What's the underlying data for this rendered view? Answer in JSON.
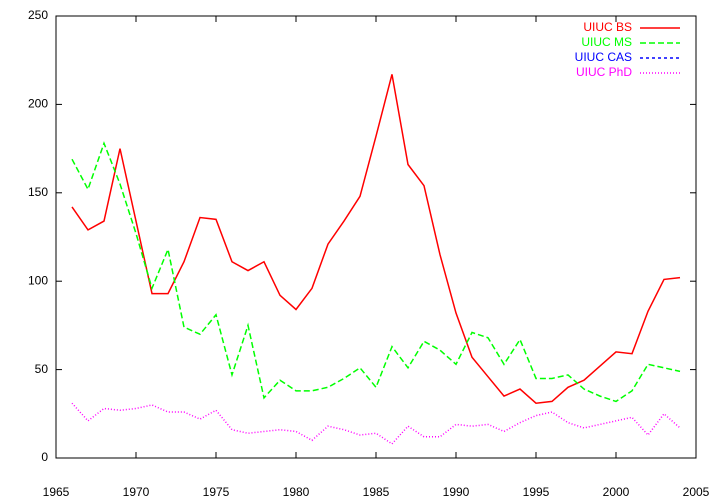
{
  "chart_data": {
    "type": "line",
    "x": [
      1966,
      1967,
      1968,
      1969,
      1970,
      1971,
      1972,
      1973,
      1974,
      1975,
      1976,
      1977,
      1978,
      1979,
      1980,
      1981,
      1982,
      1983,
      1984,
      1985,
      1986,
      1987,
      1988,
      1989,
      1990,
      1991,
      1992,
      1993,
      1994,
      1995,
      1996,
      1997,
      1998,
      1999,
      2000,
      2001,
      2002,
      2003,
      2004
    ],
    "series": [
      {
        "name": "UIUC BS",
        "color": "#ff0000",
        "dash": "solid",
        "values": [
          142,
          129,
          134,
          175,
          134,
          93,
          93,
          111,
          136,
          135,
          111,
          106,
          111,
          92,
          84,
          96,
          121,
          134,
          148,
          182,
          217,
          166,
          154,
          115,
          82,
          57,
          46,
          35,
          39,
          31,
          32,
          40,
          44,
          52,
          60,
          59,
          83,
          101,
          102
        ]
      },
      {
        "name": "UIUC MS",
        "color": "#00ff00",
        "dash": "dashed",
        "values": [
          169,
          152,
          178,
          155,
          127,
          96,
          118,
          74,
          70,
          81,
          47,
          75,
          34,
          44,
          38,
          38,
          40,
          45,
          51,
          40,
          63,
          51,
          66,
          61,
          53,
          71,
          68,
          53,
          67,
          45,
          45,
          47,
          39,
          35,
          32,
          38,
          53,
          51,
          49
        ]
      },
      {
        "name": "UIUC CAS",
        "color": "#0000ff",
        "dash": "short-dashed",
        "values": [
          null,
          null,
          null,
          null,
          null,
          null,
          null,
          null,
          null,
          null,
          null,
          null,
          null,
          null,
          null,
          null,
          null,
          null,
          null,
          null,
          null,
          null,
          null,
          null,
          null,
          null,
          null,
          null,
          null,
          null,
          null,
          null,
          null,
          null,
          null,
          null,
          null,
          null,
          null
        ]
      },
      {
        "name": "UIUC PhD",
        "color": "#ff00ff",
        "dash": "dotted",
        "values": [
          31,
          21,
          28,
          27,
          28,
          30,
          26,
          26,
          22,
          27,
          16,
          14,
          15,
          16,
          15,
          10,
          18,
          16,
          13,
          14,
          8,
          18,
          12,
          12,
          19,
          18,
          19,
          15,
          20,
          24,
          26,
          20,
          17,
          19,
          21,
          23,
          13,
          25,
          17
        ]
      }
    ],
    "xlim": [
      1965,
      2005
    ],
    "xticks": [
      1965,
      1970,
      1975,
      1980,
      1985,
      1990,
      1995,
      2000,
      2005
    ],
    "ylim": [
      0,
      250
    ],
    "yticks": [
      0,
      50,
      100,
      150,
      200,
      250
    ],
    "legend": "top-right"
  }
}
